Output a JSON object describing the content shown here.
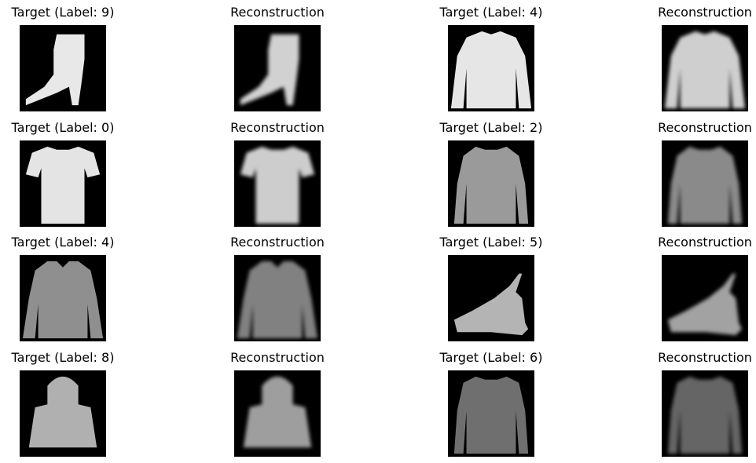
{
  "figure": {
    "rows": [
      {
        "cells": [
          {
            "title": "Target (Label: 9)",
            "item": "ankle-boot",
            "kind": "target"
          },
          {
            "title": "Reconstruction",
            "item": "ankle-boot",
            "kind": "reconstruction"
          },
          {
            "title": "Target (Label: 4)",
            "item": "coat",
            "kind": "target"
          },
          {
            "title": "Reconstruction",
            "item": "coat",
            "kind": "reconstruction"
          }
        ]
      },
      {
        "cells": [
          {
            "title": "Target (Label: 0)",
            "item": "tshirt",
            "kind": "target"
          },
          {
            "title": "Reconstruction",
            "item": "tshirt",
            "kind": "reconstruction"
          },
          {
            "title": "Target (Label: 2)",
            "item": "pullover",
            "kind": "target"
          },
          {
            "title": "Reconstruction",
            "item": "pullover",
            "kind": "reconstruction"
          }
        ]
      },
      {
        "cells": [
          {
            "title": "Target (Label: 4)",
            "item": "jacket",
            "kind": "target"
          },
          {
            "title": "Reconstruction",
            "item": "jacket",
            "kind": "reconstruction"
          },
          {
            "title": "Target (Label: 5)",
            "item": "sandal",
            "kind": "target"
          },
          {
            "title": "Reconstruction",
            "item": "sandal",
            "kind": "reconstruction"
          }
        ]
      },
      {
        "cells": [
          {
            "title": "Target (Label: 8)",
            "item": "bag",
            "kind": "target"
          },
          {
            "title": "Reconstruction",
            "item": "bag",
            "kind": "reconstruction"
          },
          {
            "title": "Target (Label: 6)",
            "item": "shirt",
            "kind": "target"
          },
          {
            "title": "Reconstruction",
            "item": "shirt",
            "kind": "reconstruction"
          }
        ]
      }
    ]
  }
}
